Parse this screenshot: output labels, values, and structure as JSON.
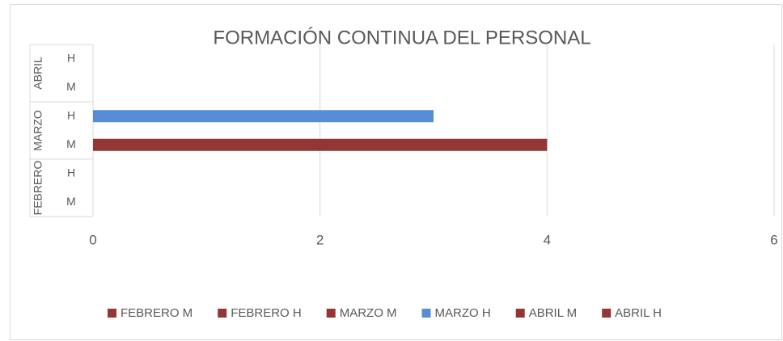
{
  "chart_data": {
    "type": "bar",
    "orientation": "horizontal",
    "title": "FORMACIÓN CONTINUA DEL PERSONAL",
    "groups": [
      "FEBRERO",
      "MARZO",
      "ABRIL"
    ],
    "categories": [
      "M",
      "H",
      "M",
      "H",
      "M",
      "H"
    ],
    "series": [
      {
        "name": "FEBRERO M",
        "color": "#943634",
        "values": [
          0,
          null,
          null,
          null,
          null,
          null
        ]
      },
      {
        "name": "FEBRERO H",
        "color": "#943634",
        "values": [
          null,
          0,
          null,
          null,
          null,
          null
        ]
      },
      {
        "name": "MARZO M",
        "color": "#943634",
        "values": [
          null,
          null,
          4,
          null,
          null,
          null
        ]
      },
      {
        "name": "MARZO H",
        "color": "#558ed5",
        "values": [
          null,
          null,
          null,
          3,
          null,
          null
        ]
      },
      {
        "name": "ABRIL M",
        "color": "#943634",
        "values": [
          null,
          null,
          null,
          null,
          0,
          null
        ]
      },
      {
        "name": "ABRIL H",
        "color": "#943634",
        "values": [
          null,
          null,
          null,
          null,
          null,
          0
        ]
      }
    ],
    "xlim": [
      0,
      6
    ],
    "xticks": [
      0,
      2,
      4,
      6
    ],
    "grid": true,
    "legend": "bottom"
  }
}
